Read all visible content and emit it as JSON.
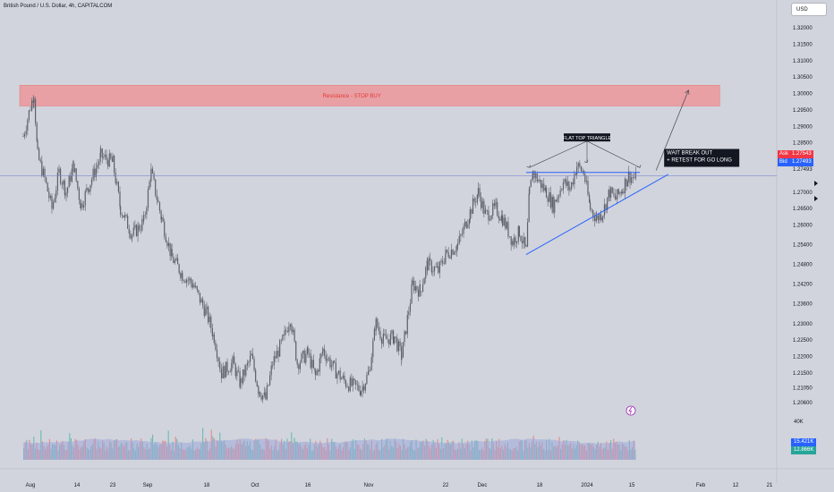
{
  "header": {
    "title": "British Pound / U.S. Dollar, 4h, CAPITALCOM",
    "currency_button": "USD"
  },
  "quotes": {
    "ask_label": "Ask",
    "ask_value": "1.27543",
    "bid_label": "Bid",
    "bid_value": "1.27493",
    "last_value": "1.27493"
  },
  "volume_labels": {
    "top": "40K",
    "value1": "15.421K",
    "value2": "12.866K"
  },
  "colors": {
    "background": "#d1d4dc",
    "candle": "#5d606b",
    "resistance_fill": "#e8a0a4",
    "resistance_text": "#e53935",
    "trendline": "#2962ff",
    "ask_bg": "#f23645",
    "bid_bg": "#2962ff",
    "vol_up": "#26a69a",
    "vol_down": "#ef5350",
    "vol_area": "#9fa8da"
  },
  "chart_data": {
    "type": "candlestick",
    "title": "British Pound / U.S. Dollar, 4h, CAPITALCOM",
    "y_ticks": [
      "1.32000",
      "1.31500",
      "1.31000",
      "1.30500",
      "1.30000",
      "1.29500",
      "1.29000",
      "1.28500",
      "1.27000",
      "1.26500",
      "1.26000",
      "1.25400",
      "1.24800",
      "1.24200",
      "1.23600",
      "1.23000",
      "1.22500",
      "1.22000",
      "1.21500",
      "1.21050",
      "1.20600"
    ],
    "y_tick_values": [
      1.32,
      1.315,
      1.31,
      1.305,
      1.3,
      1.295,
      1.29,
      1.285,
      1.27,
      1.265,
      1.26,
      1.254,
      1.248,
      1.242,
      1.236,
      1.23,
      1.225,
      1.22,
      1.215,
      1.2105,
      1.206
    ],
    "x_ticks": [
      "Aug",
      "14",
      "23",
      "Sep",
      "18",
      "Oct",
      "16",
      "Nov",
      "22",
      "Dec",
      "18",
      "2024",
      "15",
      "Feb",
      "12",
      "21"
    ],
    "x_tick_dates": [
      "2023-08-01",
      "2023-08-14",
      "2023-08-23",
      "2023-09-01",
      "2023-09-18",
      "2023-10-01",
      "2023-10-16",
      "2023-11-01",
      "2023-11-22",
      "2023-12-01",
      "2023-12-18",
      "2024-01-01",
      "2024-01-15",
      "2024-02-01",
      "2024-02-12",
      "2024-02-21"
    ],
    "close_path": [
      [
        "2023-07-30",
        1.287
      ],
      [
        "2023-08-01",
        1.296
      ],
      [
        "2023-08-02",
        1.3
      ],
      [
        "2023-08-03",
        1.281
      ],
      [
        "2023-08-05",
        1.274
      ],
      [
        "2023-08-07",
        1.265
      ],
      [
        "2023-08-09",
        1.276
      ],
      [
        "2023-08-11",
        1.27
      ],
      [
        "2023-08-13",
        1.278
      ],
      [
        "2023-08-15",
        1.266
      ],
      [
        "2023-08-17",
        1.272
      ],
      [
        "2023-08-20",
        1.281
      ],
      [
        "2023-08-23",
        1.279
      ],
      [
        "2023-08-25",
        1.265
      ],
      [
        "2023-08-28",
        1.257
      ],
      [
        "2023-08-31",
        1.261
      ],
      [
        "2023-09-02",
        1.276
      ],
      [
        "2023-09-05",
        1.262
      ],
      [
        "2023-09-08",
        1.25
      ],
      [
        "2023-09-11",
        1.245
      ],
      [
        "2023-09-14",
        1.242
      ],
      [
        "2023-09-18",
        1.233
      ],
      [
        "2023-09-20",
        1.226
      ],
      [
        "2023-09-22",
        1.215
      ],
      [
        "2023-09-25",
        1.218
      ],
      [
        "2023-09-27",
        1.212
      ],
      [
        "2023-09-30",
        1.22
      ],
      [
        "2023-10-02",
        1.21
      ],
      [
        "2023-10-04",
        1.207
      ],
      [
        "2023-10-06",
        1.218
      ],
      [
        "2023-10-09",
        1.225
      ],
      [
        "2023-10-11",
        1.232
      ],
      [
        "2023-10-13",
        1.218
      ],
      [
        "2023-10-16",
        1.221
      ],
      [
        "2023-10-18",
        1.214
      ],
      [
        "2023-10-20",
        1.222
      ],
      [
        "2023-10-23",
        1.216
      ],
      [
        "2023-10-26",
        1.212
      ],
      [
        "2023-10-30",
        1.21
      ],
      [
        "2023-11-01",
        1.215
      ],
      [
        "2023-11-03",
        1.23
      ],
      [
        "2023-11-05",
        1.225
      ],
      [
        "2023-11-08",
        1.226
      ],
      [
        "2023-11-10",
        1.22
      ],
      [
        "2023-11-13",
        1.242
      ],
      [
        "2023-11-15",
        1.24
      ],
      [
        "2023-11-17",
        1.248
      ],
      [
        "2023-11-20",
        1.246
      ],
      [
        "2023-11-22",
        1.251
      ],
      [
        "2023-11-25",
        1.254
      ],
      [
        "2023-11-28",
        1.264
      ],
      [
        "2023-11-30",
        1.27
      ],
      [
        "2023-12-02",
        1.263
      ],
      [
        "2023-12-05",
        1.265
      ],
      [
        "2023-12-07",
        1.262
      ],
      [
        "2023-12-10",
        1.255
      ],
      [
        "2023-12-12",
        1.258
      ],
      [
        "2023-12-14",
        1.252
      ],
      [
        "2023-12-15",
        1.27
      ],
      [
        "2023-12-16",
        1.276
      ],
      [
        "2023-12-18",
        1.273
      ],
      [
        "2023-12-20",
        1.27
      ],
      [
        "2023-12-22",
        1.266
      ],
      [
        "2023-12-25",
        1.273
      ],
      [
        "2023-12-27",
        1.271
      ],
      [
        "2023-12-29",
        1.278
      ],
      [
        "2023-12-31",
        1.276
      ],
      [
        "2024-01-02",
        1.265
      ],
      [
        "2024-01-04",
        1.262
      ],
      [
        "2024-01-06",
        1.264
      ],
      [
        "2024-01-08",
        1.27
      ],
      [
        "2024-01-10",
        1.268
      ],
      [
        "2024-01-12",
        1.271
      ],
      [
        "2024-01-14",
        1.275
      ],
      [
        "2024-01-16",
        1.274
      ]
    ],
    "resistance_zone": {
      "label": "Resistance - STOP BUY",
      "y_from": 1.2962,
      "y_to": 1.3025,
      "x_from": "2023-07-29",
      "x_to": "2024-02-07"
    },
    "horizontal_line": {
      "y": 1.275,
      "label": "1.27493"
    },
    "flat_top_line": {
      "x_from": "2023-12-14",
      "x_to": "2024-01-17",
      "y": 1.276
    },
    "rising_support": {
      "x_from": "2023-12-14",
      "y_from": 1.251,
      "x_to": "2024-01-24",
      "y_to": 1.2754
    },
    "breakout_arrow": {
      "x_from": "2024-01-21",
      "y_from": 1.2766,
      "x_to": "2024-01-29",
      "y_to": 1.301
    },
    "annotations": [
      {
        "text": "FLAT TOP TRIANGLE",
        "x": "2024-01-01",
        "y": 1.2865
      },
      {
        "text": "WAIT BREAK OUT",
        "x": "2024-01-21",
        "y": 1.2815
      },
      {
        "text": "+ RETEST FOR GO LONG",
        "x": "2024-01-21",
        "y": 1.2796
      }
    ],
    "triangle_peaks": [
      [
        "2023-12-15",
        1.2775
      ],
      [
        "2024-01-01",
        1.279
      ],
      [
        "2024-01-17",
        1.2775
      ]
    ],
    "flat_top_label_anchor": [
      "2024-01-01",
      1.2855
    ],
    "volume": {
      "max": 40000,
      "last_up": 15421,
      "last_down": 12866
    }
  }
}
